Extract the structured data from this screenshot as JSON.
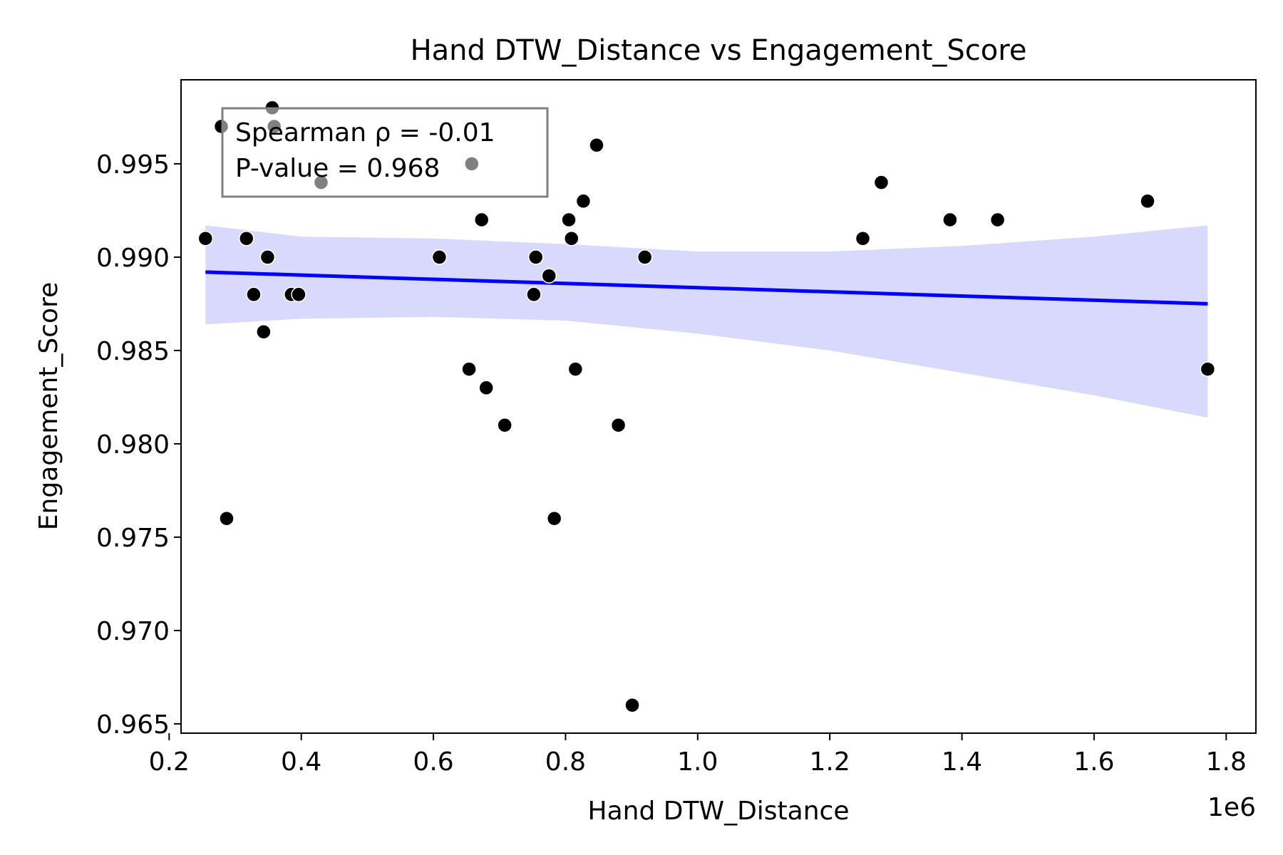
{
  "chart_data": {
    "type": "scatter",
    "title": "Hand DTW_Distance vs Engagement_Score",
    "xlabel": "Hand DTW_Distance",
    "ylabel": "Engagement_Score",
    "x_offset_label": "1e6",
    "xlim": [
      0.218,
      1.845
    ],
    "ylim": [
      0.9645,
      0.9995
    ],
    "x_ticks": [
      0.2,
      0.4,
      0.6,
      0.8,
      1.0,
      1.2,
      1.4,
      1.6,
      1.8
    ],
    "x_tick_labels": [
      "0.2",
      "0.4",
      "0.6",
      "0.8",
      "1.0",
      "1.2",
      "1.4",
      "1.6",
      "1.8"
    ],
    "y_ticks": [
      0.965,
      0.97,
      0.975,
      0.98,
      0.985,
      0.99,
      0.995
    ],
    "y_tick_labels": [
      "0.965",
      "0.970",
      "0.975",
      "0.980",
      "0.985",
      "0.990",
      "0.995"
    ],
    "grid": false,
    "annotation": {
      "line1": "Spearman ρ = -0.01",
      "line2": "P-value = 0.968",
      "placement": "top-left"
    },
    "series": [
      {
        "type": "scatter",
        "color": "#000000",
        "points": [
          {
            "x": 0.255,
            "y": 0.991
          },
          {
            "x": 0.279,
            "y": 0.997
          },
          {
            "x": 0.287,
            "y": 0.976
          },
          {
            "x": 0.317,
            "y": 0.991
          },
          {
            "x": 0.328,
            "y": 0.988
          },
          {
            "x": 0.343,
            "y": 0.986
          },
          {
            "x": 0.349,
            "y": 0.99
          },
          {
            "x": 0.356,
            "y": 0.998
          },
          {
            "x": 0.359,
            "y": 0.997
          },
          {
            "x": 0.385,
            "y": 0.988
          },
          {
            "x": 0.396,
            "y": 0.988
          },
          {
            "x": 0.43,
            "y": 0.994
          },
          {
            "x": 0.609,
            "y": 0.99
          },
          {
            "x": 0.654,
            "y": 0.984
          },
          {
            "x": 0.658,
            "y": 0.995
          },
          {
            "x": 0.673,
            "y": 0.992
          },
          {
            "x": 0.68,
            "y": 0.983
          },
          {
            "x": 0.708,
            "y": 0.981
          },
          {
            "x": 0.752,
            "y": 0.988
          },
          {
            "x": 0.755,
            "y": 0.99
          },
          {
            "x": 0.775,
            "y": 0.989
          },
          {
            "x": 0.783,
            "y": 0.976
          },
          {
            "x": 0.805,
            "y": 0.992
          },
          {
            "x": 0.809,
            "y": 0.991
          },
          {
            "x": 0.815,
            "y": 0.984
          },
          {
            "x": 0.827,
            "y": 0.993
          },
          {
            "x": 0.847,
            "y": 0.996
          },
          {
            "x": 0.88,
            "y": 0.981
          },
          {
            "x": 0.901,
            "y": 0.966
          },
          {
            "x": 0.92,
            "y": 0.99
          },
          {
            "x": 1.25,
            "y": 0.991
          },
          {
            "x": 1.278,
            "y": 0.994
          },
          {
            "x": 1.382,
            "y": 0.992
          },
          {
            "x": 1.454,
            "y": 0.992
          },
          {
            "x": 1.681,
            "y": 0.993
          },
          {
            "x": 1.772,
            "y": 0.984
          }
        ]
      },
      {
        "type": "line",
        "color": "#0000ff",
        "x": [
          0.255,
          1.772
        ],
        "y": [
          0.9892,
          0.9875
        ]
      },
      {
        "type": "confidence-band",
        "color": "#d9d9fe",
        "x": [
          0.255,
          0.4,
          0.6,
          0.8,
          1.0,
          1.2,
          1.4,
          1.6,
          1.772
        ],
        "upper": [
          0.9917,
          0.9911,
          0.991,
          0.9907,
          0.9903,
          0.9903,
          0.9906,
          0.9911,
          0.9917
        ],
        "lower": [
          0.9864,
          0.9867,
          0.9868,
          0.9866,
          0.9859,
          0.985,
          0.9838,
          0.9826,
          0.9814
        ]
      }
    ]
  }
}
